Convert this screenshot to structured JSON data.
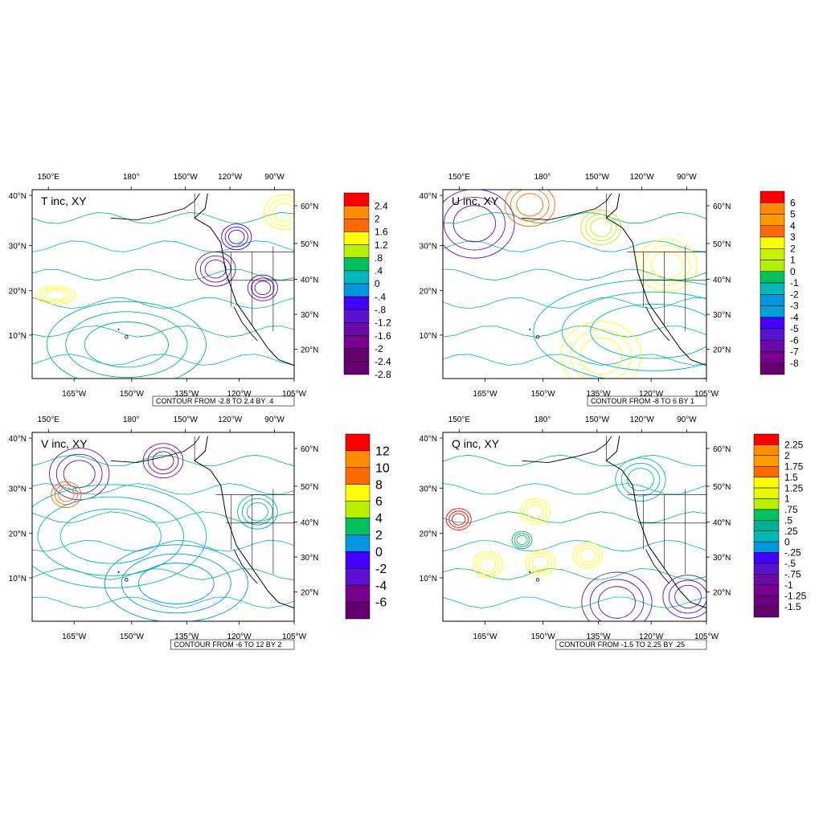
{
  "palette": [
    "#ff0000",
    "#ff8c00",
    "#ff6a00",
    "#ffff00",
    "#b8f000",
    "#00c060",
    "#00b8b8",
    "#0096e0",
    "#4400ff",
    "#5a12d0",
    "#6a0aa8",
    "#7a0090",
    "#650070"
  ],
  "panels": [
    {
      "id": "t",
      "title": "T inc, XY",
      "contour_note": "CONTOUR FROM -2.8 TO 2.4 BY .4",
      "top_lon_labels": [
        "150°E",
        "180°",
        "150°W",
        "120°W",
        "90°W"
      ],
      "bottom_lon_labels": [
        "165°W",
        "150°W",
        "135°W",
        "120°W",
        "105°W"
      ],
      "left_lat_labels": [
        "40°N",
        "30°N",
        "20°N",
        "10°N"
      ],
      "right_lat_labels": [
        "60°N",
        "50°N",
        "40°N",
        "30°N",
        "20°N"
      ],
      "colorbar": {
        "levels": [
          "2.4",
          "2",
          "1.6",
          "1.2",
          ".8",
          ".4",
          "0",
          "-.4",
          "-.8",
          "-1.2",
          "-1.6",
          "-2",
          "-2.4",
          "-2.8"
        ],
        "colors": [
          "#ff0000",
          "#ff8c00",
          "#ff6a00",
          "#ffff00",
          "#b8f000",
          "#00c060",
          "#00b8b8",
          "#0096e0",
          "#4400ff",
          "#5a12d0",
          "#6a0aa8",
          "#7a0090",
          "#650070",
          "#650070"
        ]
      }
    },
    {
      "id": "u",
      "title": "U inc, XY",
      "contour_note": "CONTOUR FROM -8 TO 6 BY 1",
      "top_lon_labels": [
        "150°E",
        "180°",
        "150°W",
        "120°W",
        "90°W"
      ],
      "bottom_lon_labels": [
        "165°W",
        "150°W",
        "135°W",
        "120°W",
        "105°W"
      ],
      "left_lat_labels": [
        "40°N",
        "30°N",
        "20°N",
        "10°N"
      ],
      "right_lat_labels": [
        "60°N",
        "50°N",
        "40°N",
        "30°N",
        "20°N"
      ],
      "colorbar": {
        "levels": [
          "6",
          "5",
          "4",
          "3",
          "2",
          "1",
          "0",
          "-1",
          "-2",
          "-3",
          "-4",
          "-5",
          "-6",
          "-7",
          "-8"
        ],
        "colors": [
          "#ff0000",
          "#ff8c00",
          "#ff9a00",
          "#ff6a00",
          "#ffff00",
          "#c8f000",
          "#b0f000",
          "#00c060",
          "#00b8b8",
          "#0096e0",
          "#00a0d8",
          "#4400ff",
          "#5a12d0",
          "#6a0aa8",
          "#7a0090",
          "#650070"
        ]
      }
    },
    {
      "id": "v",
      "title": "V inc, XY",
      "contour_note": "CONTOUR FROM -6 TO 12 BY 2",
      "top_lon_labels": [
        "150°E",
        "180°",
        "150°W",
        "120°W",
        "90°W"
      ],
      "bottom_lon_labels": [
        "165°W",
        "150°W",
        "135°W",
        "120°W",
        "105°W"
      ],
      "left_lat_labels": [
        "40°N",
        "30°N",
        "20°N",
        "10°N"
      ],
      "right_lat_labels": [
        "60°N",
        "50°N",
        "40°N",
        "30°N",
        "20°N"
      ],
      "colorbar": {
        "levels": [
          "12",
          "10",
          "8",
          "6",
          "4",
          "2",
          "0",
          "-2",
          "-4",
          "-6"
        ],
        "colors": [
          "#ff0000",
          "#ff8c00",
          "#ff6a00",
          "#ffff00",
          "#b8f000",
          "#00c060",
          "#0096e0",
          "#4400ff",
          "#5a12d0",
          "#7a0090",
          "#650070"
        ]
      }
    },
    {
      "id": "q",
      "title": "Q inc, XY",
      "contour_note": "CONTOUR FROM -1.5 TO 2.25 BY .25",
      "top_lon_labels": [
        "150°E",
        "180°",
        "150°W",
        "120°W",
        "90°W"
      ],
      "bottom_lon_labels": [
        "165°W",
        "150°W",
        "135°W",
        "120°W",
        "105°W"
      ],
      "left_lat_labels": [
        "40°N",
        "30°N",
        "20°N",
        "10°N"
      ],
      "right_lat_labels": [
        "60°N",
        "50°N",
        "40°N",
        "30°N",
        "20°N"
      ],
      "colorbar": {
        "levels": [
          "2.25",
          "2",
          "1.75",
          "1.5",
          "1.25",
          "1",
          ".75",
          ".5",
          ".25",
          "0",
          "-.25",
          "-.5",
          "-.75",
          "-1",
          "-1.25",
          "-1.5"
        ],
        "colors": [
          "#ff0000",
          "#ff8c00",
          "#ff9a00",
          "#ff6a00",
          "#ffff00",
          "#e8f800",
          "#b8f000",
          "#00c060",
          "#00b090",
          "#00b8b8",
          "#0096e0",
          "#4400ff",
          "#5a12d0",
          "#6a0aa8",
          "#7a0090",
          "#6a0080",
          "#650070"
        ]
      }
    }
  ]
}
